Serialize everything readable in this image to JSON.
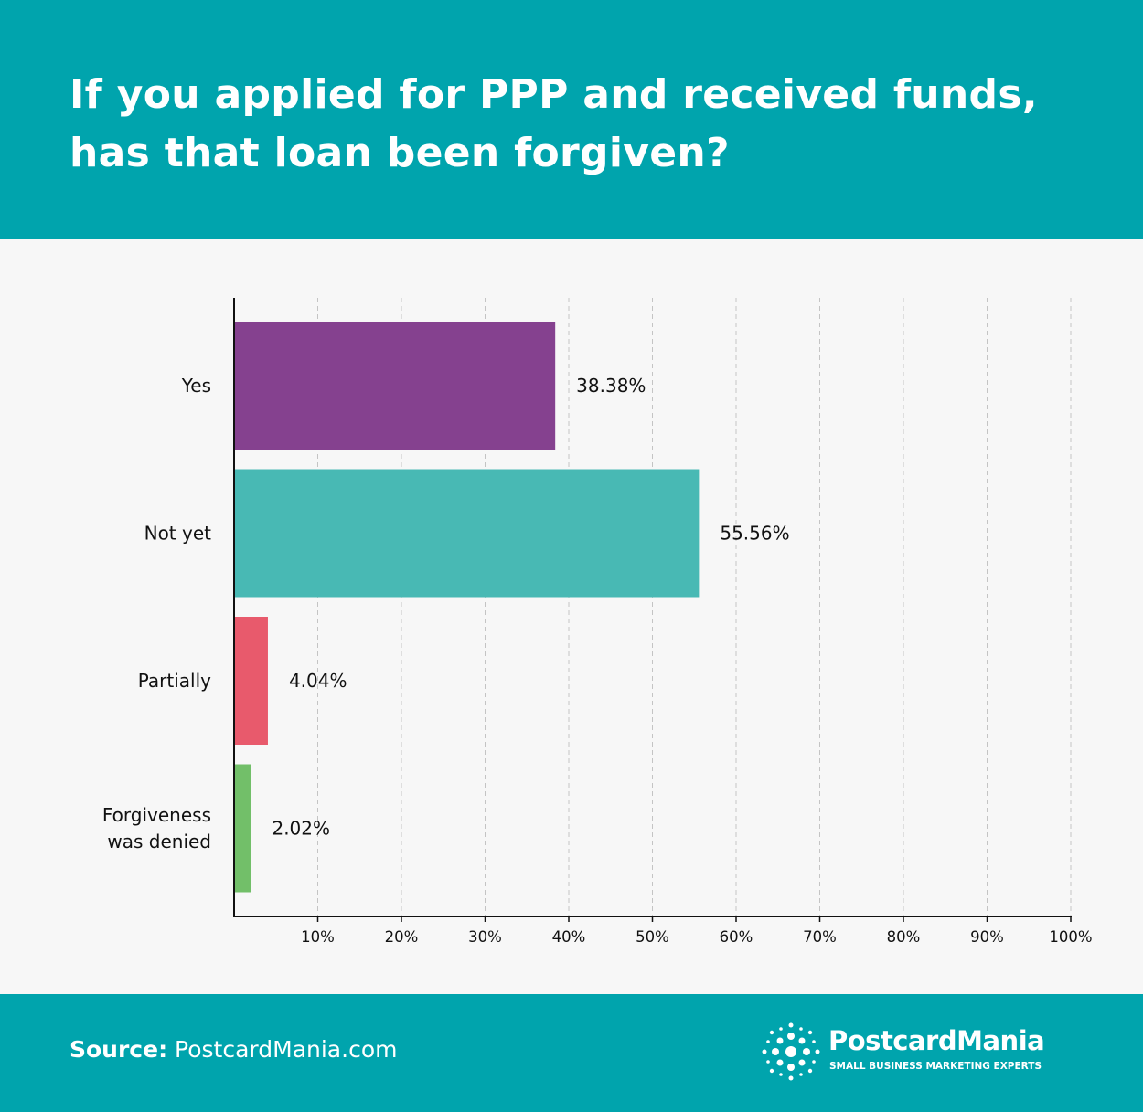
{
  "colors": {
    "header_bg": "#00a4ad",
    "plot_bg": "#f7f7f7",
    "text": "#111111"
  },
  "header": {
    "title": "If you applied for PPP and received funds, has that loan been forgiven?"
  },
  "footer": {
    "source_label": "Source:",
    "source_value": "PostcardMania.com",
    "logo_name": "PostcardMania",
    "logo_tagline": "SMALL BUSINESS MARKETING EXPERTS",
    "logo_icon": "starburst-logo-icon"
  },
  "chart_data": {
    "type": "bar",
    "orientation": "horizontal",
    "categories": [
      "Yes",
      "Not yet",
      "Partially",
      "Forgiveness was denied"
    ],
    "category_lines": [
      [
        "Yes"
      ],
      [
        "Not yet"
      ],
      [
        "Partially"
      ],
      [
        "Forgiveness",
        "was denied"
      ]
    ],
    "values": [
      38.38,
      55.56,
      4.04,
      2.02
    ],
    "value_labels": [
      "38.38%",
      "55.56%",
      "4.04%",
      "2.02%"
    ],
    "colors": [
      "#85418f",
      "#48b9b4",
      "#e85a6c",
      "#72bf69"
    ],
    "xlim": [
      0,
      100
    ],
    "x_ticks": [
      10,
      20,
      30,
      40,
      50,
      60,
      70,
      80,
      90,
      100
    ],
    "x_tick_labels": [
      "10%",
      "20%",
      "30%",
      "40%",
      "50%",
      "60%",
      "70%",
      "80%",
      "90%",
      "100%"
    ],
    "grid": "vertical dashed",
    "legend": "none"
  }
}
